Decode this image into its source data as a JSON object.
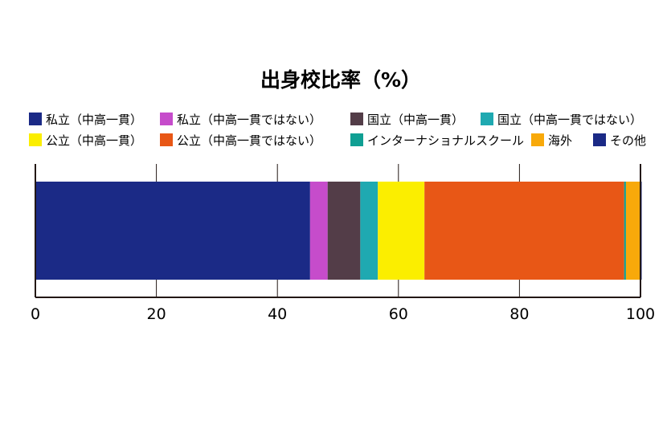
{
  "chart_data": {
    "type": "bar",
    "orientation": "horizontal",
    "stacked": true,
    "title": "出身校比率（%）",
    "xlabel": "",
    "ylabel": "",
    "xlim": [
      0,
      100
    ],
    "xticks": [
      "0",
      "20",
      "40",
      "60",
      "80",
      "100"
    ],
    "grid": true,
    "legend_position": "top",
    "series": [
      {
        "name": "私立（中高一貫）",
        "value": 45.4,
        "color": "#1b2a86"
      },
      {
        "name": "私立（中高一貫ではない）",
        "value": 2.9,
        "color": "#c64ccb"
      },
      {
        "name": "国立（中高一貫）",
        "value": 5.4,
        "color": "#533d48"
      },
      {
        "name": "国立（中高一貫ではない）",
        "value": 2.9,
        "color": "#1fa9b1"
      },
      {
        "name": "公立（中高一貫）",
        "value": 7.7,
        "color": "#fbee00"
      },
      {
        "name": "公立（中高一貫ではない）",
        "value": 33.0,
        "color": "#e85716"
      },
      {
        "name": "インターナショナルスクール",
        "value": 0.3,
        "color": "#0f9f93"
      },
      {
        "name": "海外",
        "value": 2.3,
        "color": "#f8a90a"
      },
      {
        "name": "その他",
        "value": 0.3,
        "color": "#1b2a86"
      }
    ]
  }
}
